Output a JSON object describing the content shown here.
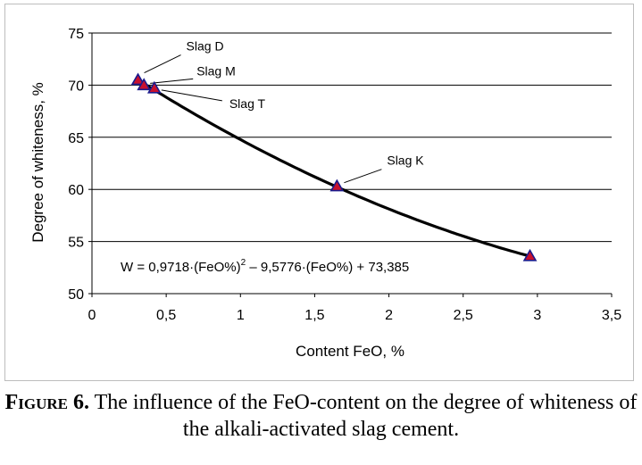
{
  "chart_data": {
    "type": "scatter",
    "xlabel": "Content FeO, %",
    "ylabel": "Degree of whiteness, %",
    "xlim": [
      0,
      3.5
    ],
    "ylim": [
      50,
      75
    ],
    "xticks": [
      "0",
      "0,5",
      "1",
      "1,5",
      "2",
      "2,5",
      "3",
      "3,5"
    ],
    "yticks": [
      "50",
      "55",
      "60",
      "65",
      "70",
      "75"
    ],
    "grid": "horizontal",
    "marker_color": "#c8102e",
    "marker_edge_color": "#1a1a8c",
    "line_color": "#000000",
    "points": [
      {
        "label": "Slag D",
        "x": 0.31,
        "y": 70.5
      },
      {
        "label": "Slag M",
        "x": 0.35,
        "y": 70.0
      },
      {
        "label": "Slag T",
        "x": 0.42,
        "y": 69.7
      },
      {
        "label": "Slag K",
        "x": 1.65,
        "y": 60.3
      },
      {
        "label": "",
        "x": 2.95,
        "y": 53.6
      }
    ],
    "fit": {
      "a": 0.9718,
      "b": -9.5776,
      "c": 73.385,
      "x_from": 0.31,
      "x_to": 2.95
    },
    "equation": {
      "prefix": "W = 0,9718·(FeO%)",
      "sup": "2",
      "suffix": " – 9,5776·(FeO%) + 73,385"
    }
  },
  "caption": {
    "label": "Figure 6.",
    "text": " The influence of the FeO-content on the degree of whiteness of the alkali-activated slag cement."
  }
}
